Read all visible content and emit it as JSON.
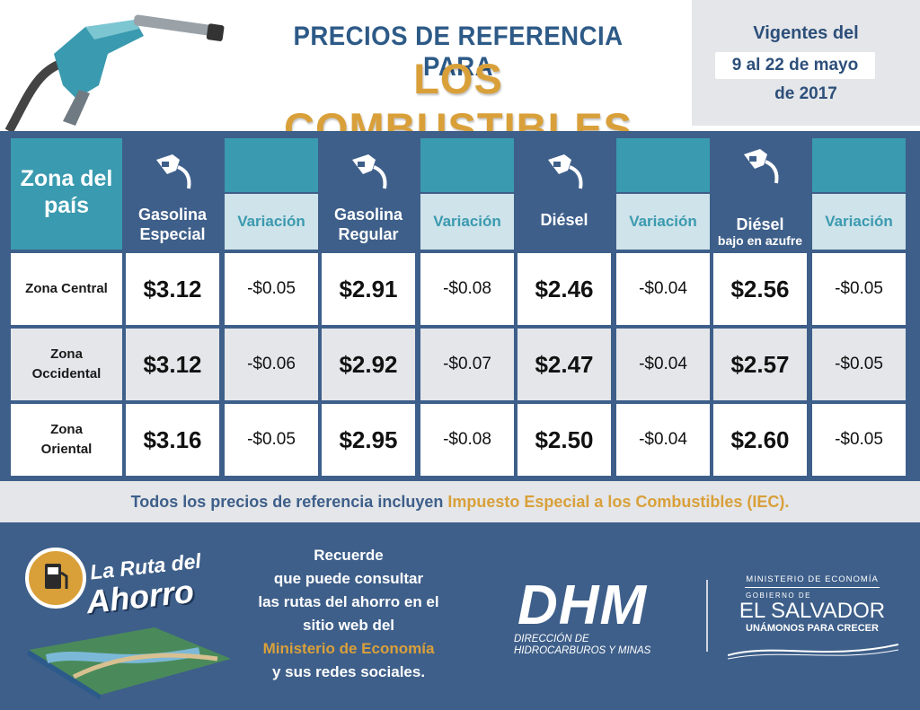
{
  "header": {
    "title_line1": "PRECIOS DE REFERENCIA PARA",
    "title_line2": "LOS COMBUSTIBLES",
    "validity_line1": "Vigentes del",
    "validity_line2": "9 al 22 de mayo",
    "validity_line3": "de 2017"
  },
  "table": {
    "zone_header": "Zona del país",
    "products": [
      {
        "name": "Gasolina Especial",
        "sub": "",
        "variation_label": "Variación"
      },
      {
        "name": "Gasolina Regular",
        "sub": "",
        "variation_label": "Variación"
      },
      {
        "name": "Diésel",
        "sub": "",
        "variation_label": "Variación"
      },
      {
        "name": "Diésel",
        "sub": "bajo en azufre",
        "variation_label": "Variación"
      }
    ],
    "rows": [
      {
        "zone": "Zona Central",
        "prices": [
          "$3.12",
          "$2.91",
          "$2.46",
          "$2.56"
        ],
        "variations": [
          "-$0.05",
          "-$0.08",
          "-$0.04",
          "-$0.05"
        ]
      },
      {
        "zone": "Zona Occidental",
        "prices": [
          "$3.12",
          "$2.92",
          "$2.47",
          "$2.57"
        ],
        "variations": [
          "-$0.06",
          "-$0.07",
          "-$0.04",
          "-$0.05"
        ]
      },
      {
        "zone": "Zona Oriental",
        "prices": [
          "$3.16",
          "$2.95",
          "$2.50",
          "$2.60"
        ],
        "variations": [
          "-$0.05",
          "-$0.08",
          "-$0.04",
          "-$0.05"
        ]
      }
    ]
  },
  "note": {
    "text": "Todos los precios de referencia incluyen ",
    "highlight": "Impuesto Especial a los Combustibles (IEC)."
  },
  "footer": {
    "logo_line1": "La Ruta del",
    "logo_line2": "Ahorro",
    "msg_lines": [
      "Recuerde",
      "que puede consultar",
      "las rutas del ahorro en el",
      "sitio web del"
    ],
    "msg_highlight": "Ministerio de Economía",
    "msg_last": "y sus redes sociales.",
    "dhm": "DHM",
    "dhm_sub1": "DIRECCIÓN DE",
    "dhm_sub2": "HIDROCARBUROS Y MINAS",
    "ministry": "MINISTERIO DE ECONOMÍA",
    "gobierno": "GOBIERNO DE",
    "country": "EL SALVADOR",
    "slogan": "UNÁMONOS PARA CRECER"
  },
  "colors": {
    "navy": "#3e5f8a",
    "teal": "#3a9aaf",
    "gold": "#d9a03a",
    "light": "#e4e6e9"
  },
  "icons": [
    "fuel-nozzle-icon",
    "gas-station-icon"
  ]
}
